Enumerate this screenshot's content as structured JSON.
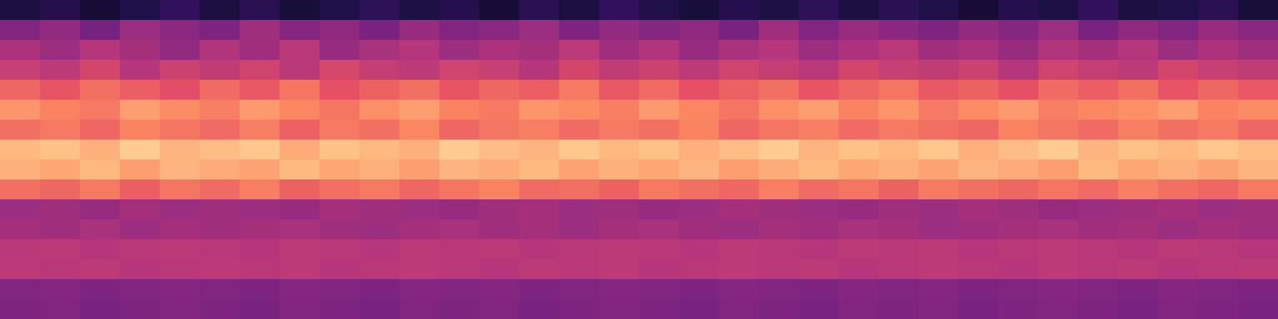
{
  "chart_data": {
    "type": "heatmap",
    "tick_labels": false,
    "zlim": [
      0,
      100
    ],
    "cells": [
      [
        12,
        15,
        10,
        14,
        18,
        12,
        16,
        11,
        14,
        17,
        13,
        15,
        10,
        16,
        12,
        18,
        14,
        11,
        15,
        13,
        17,
        12,
        16,
        14,
        10,
        15,
        13,
        18,
        12,
        14,
        16,
        11
      ],
      [
        38,
        42,
        35,
        44,
        40,
        37,
        45,
        39,
        41,
        36,
        43,
        38,
        40,
        44,
        37,
        42,
        39,
        41,
        36,
        45,
        38,
        43,
        40,
        37,
        42,
        39,
        44,
        36,
        41,
        38,
        43,
        40
      ],
      [
        48,
        44,
        50,
        46,
        42,
        49,
        45,
        51,
        43,
        47,
        50,
        44,
        48,
        46,
        52,
        45,
        49,
        43,
        47,
        50,
        44,
        48,
        51,
        45,
        47,
        43,
        49,
        46,
        50,
        44,
        48,
        45
      ],
      [
        55,
        52,
        58,
        50,
        56,
        53,
        57,
        51,
        59,
        54,
        52,
        57,
        55,
        50,
        58,
        53,
        56,
        52,
        57,
        54,
        51,
        58,
        55,
        53,
        56,
        50,
        57,
        54,
        52,
        58,
        55,
        53
      ],
      [
        68,
        64,
        70,
        66,
        62,
        69,
        65,
        71,
        63,
        67,
        70,
        64,
        68,
        66,
        72,
        65,
        69,
        63,
        67,
        70,
        64,
        68,
        71,
        65,
        67,
        63,
        69,
        66,
        70,
        64,
        68,
        65
      ],
      [
        78,
        74,
        72,
        80,
        76,
        73,
        79,
        75,
        71,
        77,
        80,
        74,
        72,
        78,
        76,
        73,
        79,
        75,
        71,
        77,
        80,
        74,
        78,
        72,
        76,
        79,
        73,
        75,
        77,
        80,
        74,
        76
      ],
      [
        70,
        72,
        68,
        74,
        71,
        69,
        73,
        67,
        72,
        70,
        75,
        68,
        71,
        73,
        69,
        72,
        70,
        74,
        68,
        71,
        73,
        69,
        72,
        70,
        68,
        74,
        71,
        69,
        73,
        70,
        72,
        68
      ],
      [
        86,
        88,
        84,
        90,
        85,
        87,
        89,
        83,
        88,
        86,
        84,
        90,
        87,
        85,
        89,
        86,
        88,
        84,
        87,
        90,
        85,
        88,
        86,
        89,
        84,
        87,
        90,
        85,
        88,
        86,
        89,
        87
      ],
      [
        84,
        82,
        86,
        80,
        85,
        83,
        81,
        86,
        82,
        84,
        80,
        85,
        83,
        86,
        81,
        84,
        82,
        85,
        80,
        83,
        86,
        82,
        84,
        81,
        85,
        83,
        80,
        86,
        82,
        84,
        81,
        85
      ],
      [
        70,
        68,
        72,
        66,
        71,
        69,
        73,
        67,
        70,
        72,
        68,
        71,
        74,
        69,
        70,
        67,
        72,
        70,
        68,
        73,
        69,
        71,
        67,
        72,
        70,
        68,
        71,
        69,
        73,
        70,
        68,
        72
      ],
      [
        44,
        45,
        43,
        46,
        44,
        45,
        44,
        43,
        46,
        45,
        44,
        43,
        45,
        46,
        44,
        45,
        43,
        44,
        46,
        45,
        44,
        43,
        45,
        44,
        46,
        45,
        43,
        44,
        45,
        46,
        44,
        45
      ],
      [
        46,
        45,
        47,
        44,
        46,
        45,
        46,
        47,
        45,
        44,
        46,
        47,
        45,
        46,
        44,
        46,
        47,
        45,
        44,
        46,
        45,
        47,
        46,
        44,
        45,
        46,
        47,
        45,
        46,
        44,
        46,
        45
      ],
      [
        51,
        52,
        50,
        51,
        52,
        51,
        50,
        52,
        51,
        50,
        52,
        51,
        52,
        50,
        51,
        52,
        51,
        50,
        52,
        51,
        50,
        52,
        51,
        52,
        50,
        51,
        52,
        51,
        50,
        52,
        51,
        50
      ],
      [
        52,
        51,
        52,
        50,
        51,
        52,
        51,
        52,
        50,
        51,
        52,
        51,
        50,
        52,
        51,
        52,
        50,
        51,
        52,
        51,
        52,
        50,
        51,
        52,
        51,
        50,
        52,
        51,
        52,
        50,
        51,
        52
      ],
      [
        38,
        39,
        37,
        38,
        39,
        38,
        37,
        39,
        38,
        37,
        39,
        38,
        39,
        37,
        38,
        39,
        38,
        37,
        39,
        38,
        37,
        39,
        38,
        39,
        37,
        38,
        39,
        38,
        37,
        39,
        38,
        37
      ],
      [
        37,
        38,
        36,
        37,
        38,
        37,
        36,
        38,
        37,
        36,
        38,
        37,
        38,
        36,
        37,
        38,
        37,
        36,
        38,
        37,
        36,
        38,
        37,
        38,
        36,
        37,
        38,
        37,
        36,
        38,
        37,
        36
      ]
    ]
  }
}
